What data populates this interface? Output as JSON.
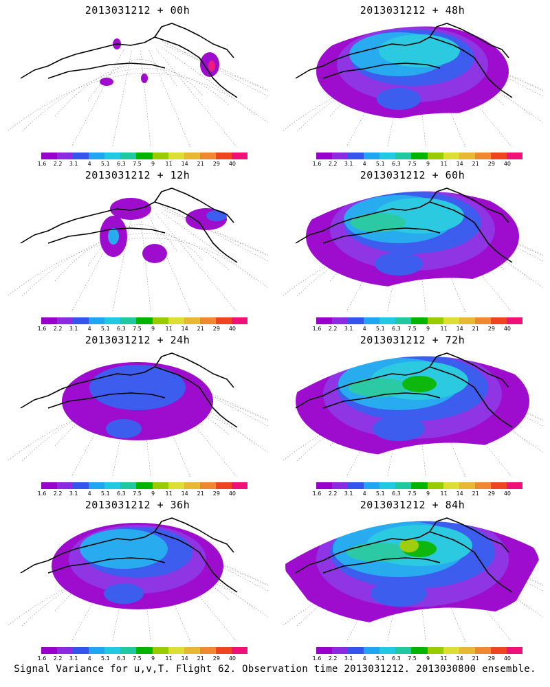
{
  "palette": [
    "#9900cc",
    "#8a2be2",
    "#3355ee",
    "#1ea7f0",
    "#20c8e0",
    "#20c8a0",
    "#00b400",
    "#99cc00",
    "#dddd33",
    "#e6b833",
    "#ee8833",
    "#ee4422",
    "#ee1177"
  ],
  "colorbar_labels": [
    "1.6",
    "2.2",
    "3.1",
    "4",
    "5.1",
    "6.3",
    "7.5",
    "9",
    "11",
    "14",
    "21",
    "29",
    "40"
  ],
  "panels": [
    {
      "title": "2013031212 + 00h",
      "level": 0
    },
    {
      "title": "2013031212 + 48h",
      "level": 4
    },
    {
      "title": "2013031212 + 12h",
      "level": 1
    },
    {
      "title": "2013031212 + 60h",
      "level": 5
    },
    {
      "title": "2013031212 + 24h",
      "level": 2
    },
    {
      "title": "2013031212 + 72h",
      "level": 6
    },
    {
      "title": "2013031212 + 36h",
      "level": 3
    },
    {
      "title": "2013031212 + 84h",
      "level": 7
    }
  ],
  "footer": "Signal Variance for u,v,T. Flight 62. Observation time 2013031212. 2013030800 ensemble."
}
